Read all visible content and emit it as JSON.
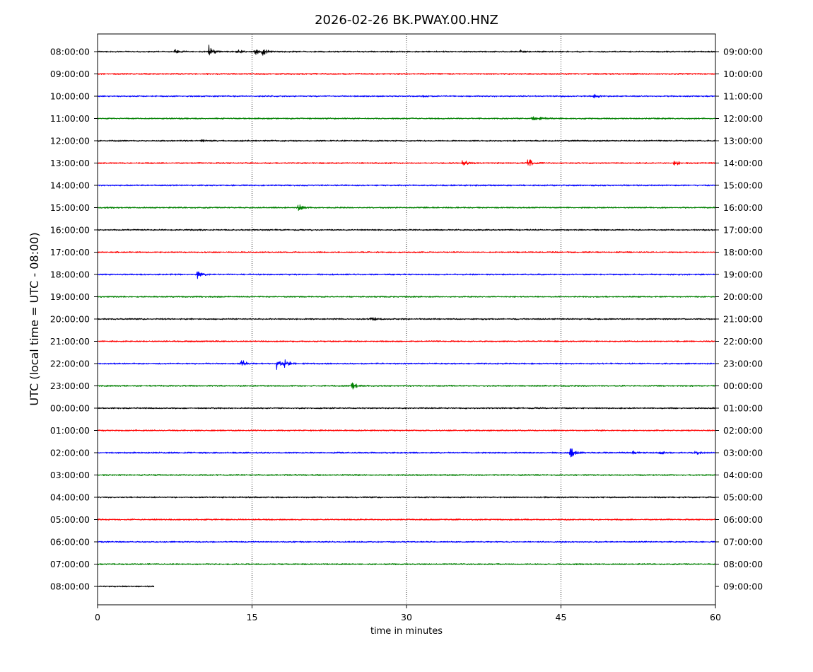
{
  "chart_data": {
    "type": "line",
    "title": "2026-02-26 BK.PWAY.00.HNZ",
    "xlabel": "time in minutes",
    "ylabel": "UTC (local time = UTC - 08:00)",
    "xlim": [
      0,
      60
    ],
    "x_ticks": [
      0,
      15,
      30,
      45,
      60
    ],
    "grid": "vertical dotted at x ticks",
    "colors": [
      "#000000",
      "#ff0000",
      "#0000ff",
      "#008000"
    ],
    "left_tick_labels": [
      "08:00:00",
      "09:00:00",
      "10:00:00",
      "11:00:00",
      "12:00:00",
      "13:00:00",
      "14:00:00",
      "15:00:00",
      "16:00:00",
      "17:00:00",
      "18:00:00",
      "19:00:00",
      "20:00:00",
      "21:00:00",
      "22:00:00",
      "23:00:00",
      "00:00:00",
      "01:00:00",
      "02:00:00",
      "03:00:00",
      "04:00:00",
      "05:00:00",
      "06:00:00",
      "07:00:00",
      "08:00:00"
    ],
    "right_tick_labels": [
      "09:00:00",
      "10:00:00",
      "11:00:00",
      "12:00:00",
      "13:00:00",
      "14:00:00",
      "15:00:00",
      "16:00:00",
      "17:00:00",
      "18:00:00",
      "19:00:00",
      "20:00:00",
      "21:00:00",
      "22:00:00",
      "23:00:00",
      "00:00:00",
      "01:00:00",
      "02:00:00",
      "03:00:00",
      "04:00:00",
      "05:00:00",
      "06:00:00",
      "07:00:00",
      "08:00:00",
      "09:00:00"
    ],
    "traces": [
      {
        "color_index": 0,
        "end_minute": 60,
        "events": [
          {
            "t": 7.5,
            "amp": 3
          },
          {
            "t": 10.8,
            "amp": 9
          },
          {
            "t": 13.5,
            "amp": 4
          },
          {
            "t": 15.3,
            "amp": 4
          },
          {
            "t": 16.0,
            "amp": 5
          },
          {
            "t": 41.0,
            "amp": 2
          }
        ]
      },
      {
        "color_index": 1,
        "end_minute": 60,
        "events": []
      },
      {
        "color_index": 2,
        "end_minute": 60,
        "events": [
          {
            "t": 31.5,
            "amp": 1.5
          },
          {
            "t": 48.2,
            "amp": 3
          }
        ]
      },
      {
        "color_index": 3,
        "end_minute": 60,
        "events": [
          {
            "t": 42.2,
            "amp": 3
          },
          {
            "t": 43.0,
            "amp": 1.5
          }
        ]
      },
      {
        "color_index": 0,
        "end_minute": 60,
        "events": [
          {
            "t": 10.1,
            "amp": 2
          }
        ]
      },
      {
        "color_index": 1,
        "end_minute": 60,
        "events": [
          {
            "t": 35.4,
            "amp": 7
          },
          {
            "t": 41.8,
            "amp": 9
          },
          {
            "t": 56.0,
            "amp": 5
          }
        ]
      },
      {
        "color_index": 2,
        "end_minute": 60,
        "events": []
      },
      {
        "color_index": 3,
        "end_minute": 60,
        "events": [
          {
            "t": 19.5,
            "amp": 5
          }
        ]
      },
      {
        "color_index": 0,
        "end_minute": 60,
        "events": []
      },
      {
        "color_index": 1,
        "end_minute": 60,
        "events": []
      },
      {
        "color_index": 2,
        "end_minute": 60,
        "events": [
          {
            "t": 9.7,
            "amp": 6
          }
        ]
      },
      {
        "color_index": 3,
        "end_minute": 60,
        "events": []
      },
      {
        "color_index": 0,
        "end_minute": 60,
        "events": [
          {
            "t": 26.5,
            "amp": 5
          }
        ]
      },
      {
        "color_index": 1,
        "end_minute": 60,
        "events": []
      },
      {
        "color_index": 2,
        "end_minute": 60,
        "events": [
          {
            "t": 13.9,
            "amp": 8
          },
          {
            "t": 17.4,
            "amp": 8
          },
          {
            "t": 18.1,
            "amp": 10
          }
        ]
      },
      {
        "color_index": 3,
        "end_minute": 60,
        "events": [
          {
            "t": 24.7,
            "amp": 6
          }
        ]
      },
      {
        "color_index": 0,
        "end_minute": 60,
        "events": []
      },
      {
        "color_index": 1,
        "end_minute": 60,
        "events": []
      },
      {
        "color_index": 2,
        "end_minute": 60,
        "events": [
          {
            "t": 45.9,
            "amp": 9
          },
          {
            "t": 52.0,
            "amp": 2
          },
          {
            "t": 54.5,
            "amp": 3
          },
          {
            "t": 58.0,
            "amp": 4
          }
        ]
      },
      {
        "color_index": 3,
        "end_minute": 60,
        "events": []
      },
      {
        "color_index": 0,
        "end_minute": 60,
        "events": []
      },
      {
        "color_index": 1,
        "end_minute": 60,
        "events": []
      },
      {
        "color_index": 2,
        "end_minute": 60,
        "events": []
      },
      {
        "color_index": 3,
        "end_minute": 60,
        "events": []
      },
      {
        "color_index": 0,
        "end_minute": 5.5,
        "events": []
      }
    ]
  }
}
